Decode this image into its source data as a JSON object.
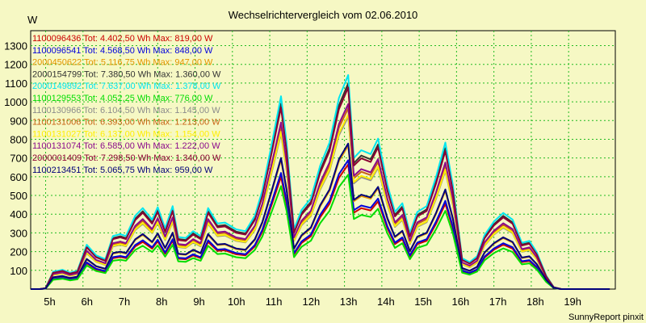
{
  "chart_data": {
    "type": "line",
    "title": "Wechselrichtervergleich vom 02.06.2010",
    "ylabel": "W",
    "ylim": [
      0,
      1380
    ],
    "xlim": [
      4.6,
      20.25
    ],
    "grid": true,
    "legend_position": "top-left",
    "yticks": [
      100,
      200,
      300,
      400,
      500,
      600,
      700,
      800,
      900,
      1000,
      1100,
      1200,
      1300
    ],
    "xticks": [
      {
        "v": 5,
        "label": "5h"
      },
      {
        "v": 6,
        "label": "6h"
      },
      {
        "v": 7,
        "label": "7h"
      },
      {
        "v": 8,
        "label": "8h"
      },
      {
        "v": 9,
        "label": "9h"
      },
      {
        "v": 10,
        "label": "10h"
      },
      {
        "v": 11,
        "label": "11h"
      },
      {
        "v": 12,
        "label": "12h"
      },
      {
        "v": 13,
        "label": "13h"
      },
      {
        "v": 14,
        "label": "14h"
      },
      {
        "v": 15,
        "label": "15h"
      },
      {
        "v": 16,
        "label": "16h"
      },
      {
        "v": 17,
        "label": "17h"
      },
      {
        "v": 18,
        "label": "18h"
      },
      {
        "v": 19,
        "label": "19h"
      }
    ],
    "x": [
      4.6,
      4.85,
      5.0,
      5.2,
      5.45,
      5.65,
      5.85,
      6.1,
      6.35,
      6.6,
      6.8,
      7.0,
      7.15,
      7.4,
      7.6,
      7.85,
      8.0,
      8.2,
      8.4,
      8.55,
      8.75,
      8.95,
      9.15,
      9.35,
      9.6,
      9.8,
      10.1,
      10.35,
      10.6,
      10.8,
      11.05,
      11.3,
      11.45,
      11.65,
      11.85,
      12.1,
      12.35,
      12.6,
      12.85,
      13.1,
      13.25,
      13.45,
      13.7,
      13.9,
      14.15,
      14.35,
      14.55,
      14.75,
      14.95,
      15.2,
      15.45,
      15.7,
      15.9,
      16.15,
      16.35,
      16.55,
      16.75,
      17.0,
      17.25,
      17.5,
      17.75,
      17.95,
      18.15,
      18.4,
      18.6,
      18.8,
      19.05,
      19.3,
      19.5,
      19.7,
      19.9,
      20.1
    ],
    "base": [
      0,
      0,
      5,
      90,
      100,
      85,
      95,
      230,
      175,
      155,
      275,
      285,
      275,
      380,
      420,
      360,
      425,
      315,
      430,
      270,
      265,
      300,
      275,
      420,
      340,
      345,
      310,
      300,
      380,
      510,
      750,
      1000,
      760,
      310,
      410,
      470,
      640,
      760,
      990,
      1110,
      680,
      720,
      700,
      780,
      540,
      400,
      445,
      290,
      400,
      430,
      580,
      760,
      540,
      160,
      140,
      170,
      280,
      350,
      395,
      360,
      240,
      250,
      190,
      70,
      10,
      0,
      0,
      0,
      0,
      0,
      0,
      0
    ],
    "series": [
      {
        "name": "1100096436",
        "text": "1100096436 Tot: 4.402,50 Wh Max: 819,00 W",
        "color": "#cc0000",
        "scale": 0.6
      },
      {
        "name": "1100096541",
        "text": "1100096541 Tot: 4.568,50 Wh Max: 848,00 W",
        "color": "#0000dd",
        "scale": 0.62
      },
      {
        "name": "2000450622",
        "text": "2000450622 Tot: 5.116,75 Wh Max: 947,00 W",
        "color": "#e69500",
        "scale": 0.69
      },
      {
        "name": "2000154799",
        "text": "2000154799 Tot: 7.380,50 Wh Max: 1.360,00 W",
        "color": "#333333",
        "scale": 0.99
      },
      {
        "name": "2000149892",
        "text": "2000149892 Tot: 7.637,00 Wh Max: 1.378,00 W",
        "color": "#00e6f0",
        "scale": 1.03
      },
      {
        "name": "1100129553",
        "text": "1100129553 Tot: 4.052,25 Wh Max: 776,00 W",
        "color": "#00dd00",
        "scale": 0.55
      },
      {
        "name": "1100130966",
        "text": "1100130966 Tot: 6.104,50 Wh Max: 1.145,00 W",
        "color": "#8c8c8c",
        "scale": 0.83
      },
      {
        "name": "1100131006",
        "text": "1100131006 Tot: 6.393,00 Wh Max: 1.213,00 W",
        "color": "#c86414",
        "scale": 0.87
      },
      {
        "name": "1100131027",
        "text": "1100131027 Tot: 6.137,00 Wh Max: 1.154,00 W",
        "color": "#ffee00",
        "scale": 0.84
      },
      {
        "name": "1100131074",
        "text": "1100131074 Tot: 6.585,00 Wh Max: 1.222,00 W",
        "color": "#8c0a8c",
        "scale": 0.89
      },
      {
        "name": "2000001409",
        "text": "2000001409 Tot: 7.298,50 Wh Max: 1.340,00 W",
        "color": "#8b0033",
        "scale": 0.97
      },
      {
        "name": "1100213451",
        "text": "1100213451 Tot: 5.065,75 Wh Max: 959,00 W",
        "color": "#00007a",
        "scale": 0.7
      }
    ]
  },
  "footer": "SunnyReport pinxit"
}
